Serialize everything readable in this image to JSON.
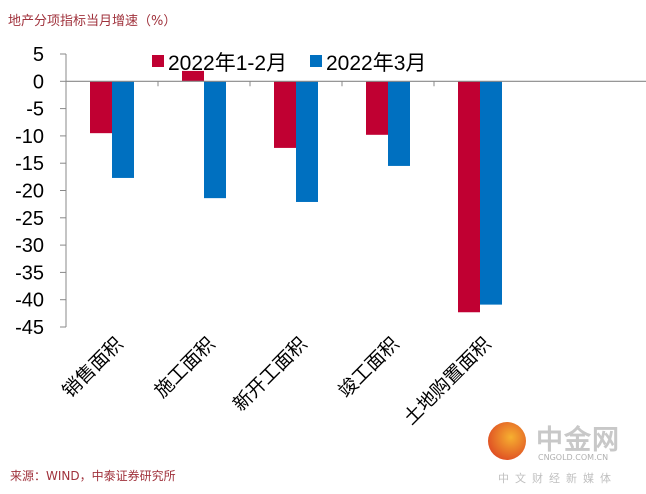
{
  "chart_data": {
    "type": "bar",
    "title": "地产分项指标当月增速（%）",
    "categories": [
      "销售面积",
      "施工面积",
      "新开工面积",
      "竣工面积",
      "土地购置面积"
    ],
    "series": [
      {
        "name": "2022年1-2月",
        "color": "#c00032",
        "values": [
          -9.5,
          1.9,
          -12.2,
          -9.8,
          -42.3
        ]
      },
      {
        "name": "2022年3月",
        "color": "#0070c0",
        "values": [
          -17.7,
          -21.4,
          -22.1,
          -15.5,
          -40.9
        ]
      }
    ],
    "ylim": [
      -45,
      5
    ],
    "yticks": [
      5,
      0,
      -5,
      -10,
      -15,
      -20,
      -25,
      -30,
      -35,
      -40,
      -45
    ],
    "legend": "top",
    "xlabel": "",
    "ylabel": ""
  },
  "source": "来源：WIND，中泰证券研究所",
  "watermark": {
    "name": "中金网",
    "url": "CNGOLD.COM.CN",
    "tagline": "中文财经新媒体"
  }
}
